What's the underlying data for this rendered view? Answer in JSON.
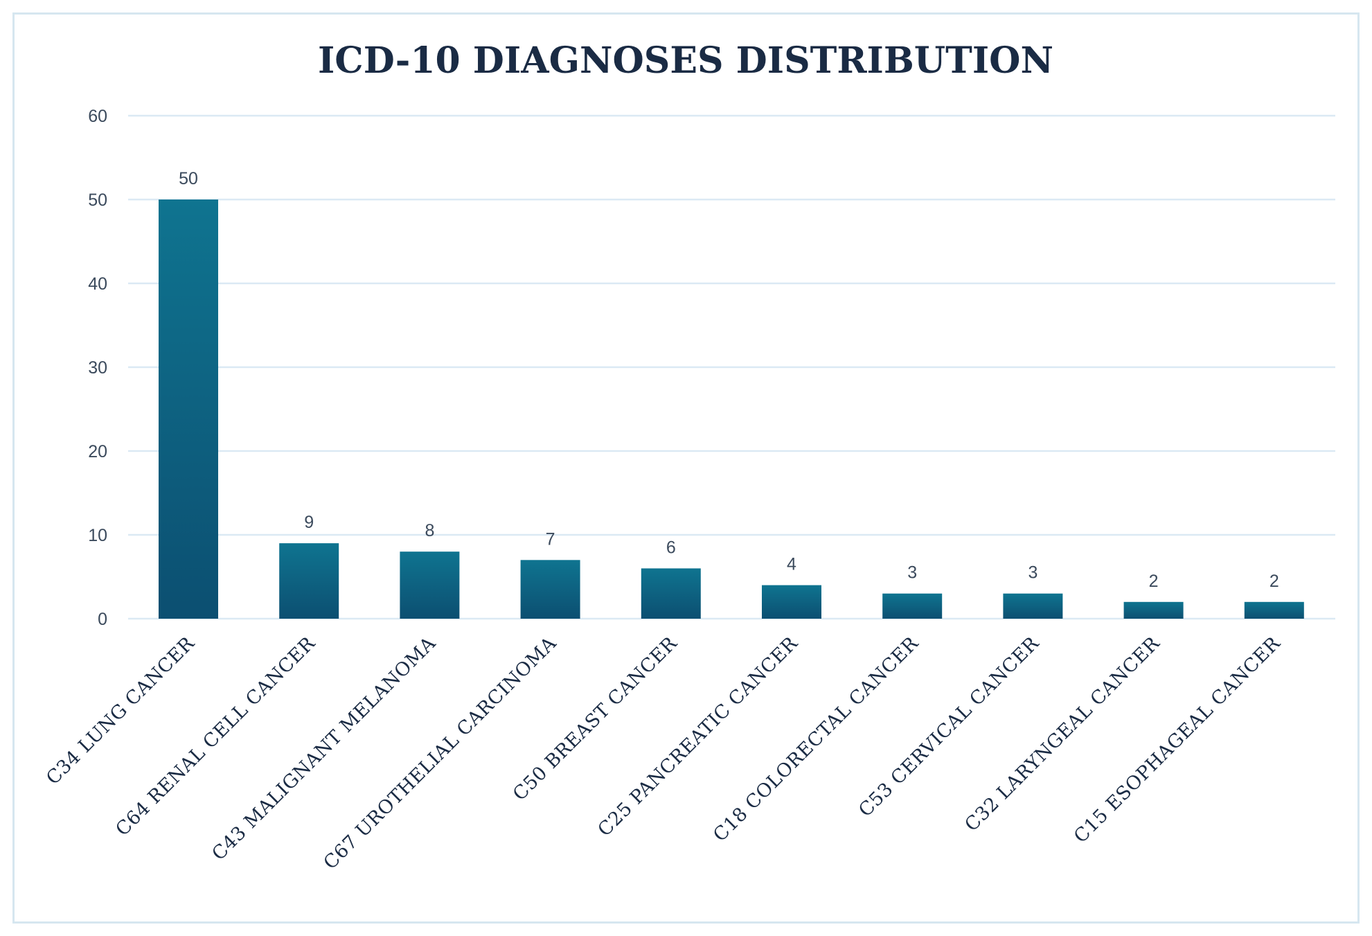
{
  "chart_data": {
    "type": "bar",
    "title": "ICD-10 DIAGNOSES DISTRIBUTION",
    "xlabel": "",
    "ylabel": "",
    "ylim": [
      0,
      60
    ],
    "yticks": [
      0,
      10,
      20,
      30,
      40,
      50,
      60
    ],
    "grid": true,
    "categories": [
      "C34 LUNG CANCER",
      "C64 RENAL CELL CANCER",
      "C43 MALIGNANT MELANOMA",
      "C67 UROTHELIAL CARCINOMA",
      "C50 BREAST CANCER",
      "C25 PANCREATIC CANCER",
      "C18 COLORECTAL CANCER",
      "C53 CERVICAL CANCER",
      "C32 LARYNGEAL CANCER",
      "C15 ESOPHAGEAL CANCER"
    ],
    "values": [
      50,
      9,
      8,
      7,
      6,
      4,
      3,
      3,
      2,
      2
    ],
    "colors": {
      "bar_top": "#0f7490",
      "bar_bottom": "#0c4f71",
      "grid": "#dbe9f4",
      "text": "#1a2b44"
    }
  }
}
